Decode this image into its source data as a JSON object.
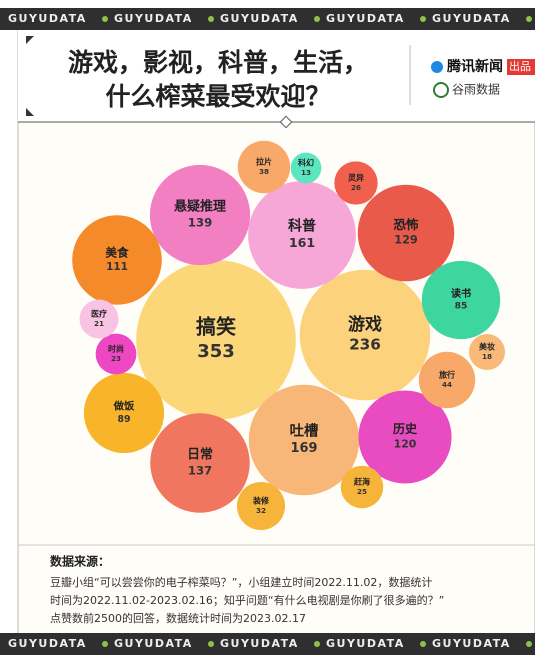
{
  "banner": "GUYUDATA",
  "header": {
    "title_lines": [
      "游戏，影视，科普，生活，",
      "什么榨菜最受欢迎？"
    ],
    "publisher": "腾讯新闻",
    "publisher_tag": "出品",
    "partner": "谷雨数据"
  },
  "chart_data": {
    "type": "packed_bubble",
    "categories": [
      "搞笑",
      "游戏",
      "吐槽",
      "科普",
      "悬疑推理",
      "日常",
      "恐怖",
      "历史",
      "美食",
      "做饭",
      "读书",
      "旅行",
      "拉片",
      "装修",
      "灵异",
      "赶海",
      "时尚",
      "医疗",
      "美妆",
      "科幻"
    ],
    "values": [
      353,
      236,
      169,
      161,
      139,
      137,
      129,
      120,
      111,
      89,
      85,
      44,
      38,
      32,
      26,
      25,
      23,
      21,
      18,
      13
    ],
    "colors": [
      "#fbd77a",
      "#fcd27c",
      "#f9b679",
      "#f7a7d7",
      "#f27fc2",
      "#f1765f",
      "#ea5a4b",
      "#e94cc0",
      "#f58a2b",
      "#f9b52a",
      "#3dd6a0",
      "#f8a868",
      "#f8a868",
      "#f7b43a",
      "#f0604c",
      "#f7b43a",
      "#ee47c4",
      "#f9c3e3",
      "#f9b979",
      "#5be6c0"
    ]
  },
  "source": {
    "heading": "数据来源：",
    "lines": [
      "豆瓣小组“可以尝尝你的电子榨菜吗？”，小组建立时间2022.11.02，数据统计",
      "时间为2022.11.02-2023.02.16；知乎问题“有什么电视剧是你刷了很多遍的？”",
      "点赞数前2500的回答，数据统计时间为2023.02.17"
    ]
  }
}
